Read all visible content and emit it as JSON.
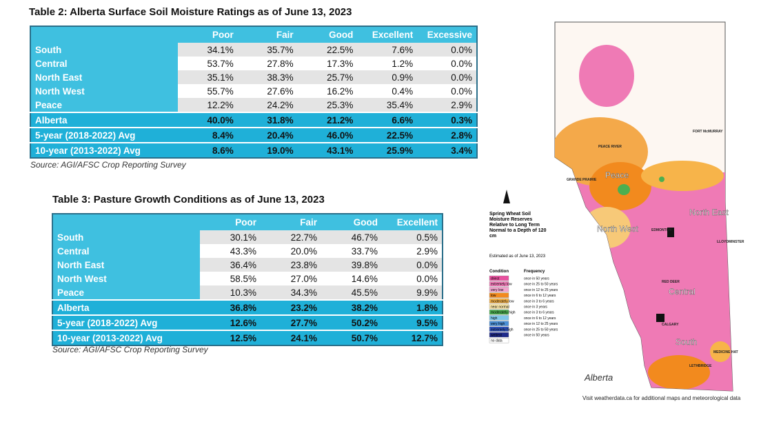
{
  "table2": {
    "title": "Table 2: Alberta Surface Soil Moisture Ratings as of June 13, 2023",
    "columns": [
      "Poor",
      "Fair",
      "Good",
      "Excellent",
      "Excessive"
    ],
    "rows": [
      [
        "South",
        "34.1%",
        "35.7%",
        "22.5%",
        "7.6%",
        "0.0%"
      ],
      [
        "Central",
        "53.7%",
        "27.8%",
        "17.3%",
        "1.2%",
        "0.0%"
      ],
      [
        "North East",
        "35.1%",
        "38.3%",
        "25.7%",
        "0.9%",
        "0.0%"
      ],
      [
        "North West",
        "55.7%",
        "27.6%",
        "16.2%",
        "0.4%",
        "0.0%"
      ],
      [
        "Peace",
        "12.2%",
        "24.2%",
        "25.3%",
        "35.4%",
        "2.9%"
      ]
    ],
    "summary": [
      [
        "Alberta",
        "40.0%",
        "31.8%",
        "21.2%",
        "6.6%",
        "0.3%"
      ],
      [
        "5-year (2018-2022) Avg",
        "8.4%",
        "20.4%",
        "46.0%",
        "22.5%",
        "2.8%"
      ],
      [
        "10-year (2013-2022) Avg",
        "8.6%",
        "19.0%",
        "43.1%",
        "25.9%",
        "3.4%"
      ]
    ],
    "source": "Source: AGI/AFSC Crop Reporting Survey"
  },
  "table3": {
    "title": "Table 3: Pasture Growth Conditions as of June 13, 2023",
    "columns": [
      "Poor",
      "Fair",
      "Good",
      "Excellent"
    ],
    "rows": [
      [
        "South",
        "30.1%",
        "22.7%",
        "46.7%",
        "0.5%"
      ],
      [
        "Central",
        "43.3%",
        "20.0%",
        "33.7%",
        "2.9%"
      ],
      [
        "North East",
        "36.4%",
        "23.8%",
        "39.8%",
        "0.0%"
      ],
      [
        "North West",
        "58.5%",
        "27.0%",
        "14.6%",
        "0.0%"
      ],
      [
        "Peace",
        "10.3%",
        "34.3%",
        "45.5%",
        "9.9%"
      ]
    ],
    "summary": [
      [
        "Alberta",
        "36.8%",
        "23.2%",
        "38.2%",
        "1.8%"
      ],
      [
        "5-year (2018-2022) Avg",
        "12.6%",
        "27.7%",
        "50.2%",
        "9.5%"
      ],
      [
        "10-year (2013-2022) Avg",
        "12.5%",
        "24.1%",
        "50.7%",
        "12.7%"
      ]
    ],
    "source": "Source: AGI/AFSC Crop Reporting Survey"
  },
  "map": {
    "legend_title": "Spring Wheat Soil Moisture Reserves Relative to Long Term Normal to a Depth of 120 cm",
    "date": "Estimated as of June 13, 2023",
    "condition_header": "Condition",
    "frequency_header": "Frequency",
    "legend": [
      {
        "condition": "driest",
        "frequency": "once in 50 years",
        "color": "#e8519f"
      },
      {
        "condition": "extremely low",
        "frequency": "once in 25 to 50 years",
        "color": "#f07cb8"
      },
      {
        "condition": "very low",
        "frequency": "once in 12 to 25 years",
        "color": "#f3a3cd"
      },
      {
        "condition": "low",
        "frequency": "once in 6 to 12 years",
        "color": "#f28a1e"
      },
      {
        "condition": "moderately low",
        "frequency": "once in 3 to 6 years",
        "color": "#f7b44a"
      },
      {
        "condition": "near normal",
        "frequency": "once in 3 years",
        "color": "#fbe6a6"
      },
      {
        "condition": "moderately high",
        "frequency": "once in 3 to 6 years",
        "color": "#4caf50"
      },
      {
        "condition": "high",
        "frequency": "once in 6 to 12 years",
        "color": "#7fc7e8"
      },
      {
        "condition": "very high",
        "frequency": "once in 12 to 25 years",
        "color": "#4a8fd6"
      },
      {
        "condition": "extremely high",
        "frequency": "once in 25 to 50 years",
        "color": "#2f52b8"
      },
      {
        "condition": "wettest",
        "frequency": "once in 50 years",
        "color": "#1e2a8a"
      },
      {
        "condition": "no data",
        "color": "#ffffff"
      }
    ],
    "regions": [
      "Peace",
      "North West",
      "North East",
      "Central",
      "South"
    ],
    "places": [
      "FORT McMURRAY",
      "PEACE RIVER",
      "GRANDE PRAIRIE",
      "EDMONTON",
      "LLOYDMINSTER",
      "RED DEER",
      "CALGARY",
      "LETHBRIDGE",
      "MEDICINE HAT"
    ],
    "logo": "Alberta",
    "footer": "Visit weatherdata.ca for additional maps and meteorological data"
  }
}
